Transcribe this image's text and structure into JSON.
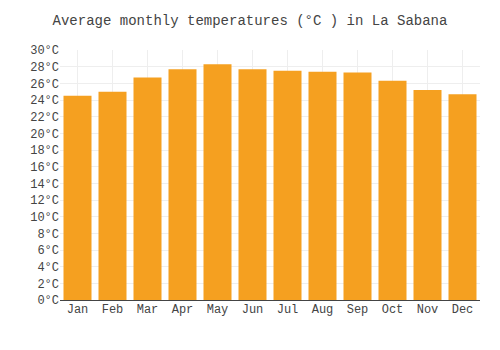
{
  "chart_data": {
    "type": "bar",
    "title": "Average monthly temperatures (°C ) in La Sabana",
    "categories": [
      "Jan",
      "Feb",
      "Mar",
      "Apr",
      "May",
      "Jun",
      "Jul",
      "Aug",
      "Sep",
      "Oct",
      "Nov",
      "Dec"
    ],
    "values": [
      24.5,
      25.0,
      26.7,
      27.7,
      28.3,
      27.7,
      27.5,
      27.4,
      27.3,
      26.3,
      25.2,
      24.7
    ],
    "color": "#F5A020",
    "ylim": [
      0,
      30
    ],
    "yticks": [
      {
        "value": 0,
        "label": "0°C"
      },
      {
        "value": 2,
        "label": "2°C"
      },
      {
        "value": 4,
        "label": "4°C"
      },
      {
        "value": 6,
        "label": "6°C"
      },
      {
        "value": 8,
        "label": "8°C"
      },
      {
        "value": 10,
        "label": "10°C"
      },
      {
        "value": 12,
        "label": "12°C"
      },
      {
        "value": 14,
        "label": "14°C"
      },
      {
        "value": 16,
        "label": "16°C"
      },
      {
        "value": 18,
        "label": "18°C"
      },
      {
        "value": 20,
        "label": "20°C"
      },
      {
        "value": 22,
        "label": "22°C"
      },
      {
        "value": 24,
        "label": "24°C"
      },
      {
        "value": 26,
        "label": "26°C"
      },
      {
        "value": 28,
        "label": "28°C"
      },
      {
        "value": 30,
        "label": "30°C"
      }
    ],
    "grid": true
  }
}
